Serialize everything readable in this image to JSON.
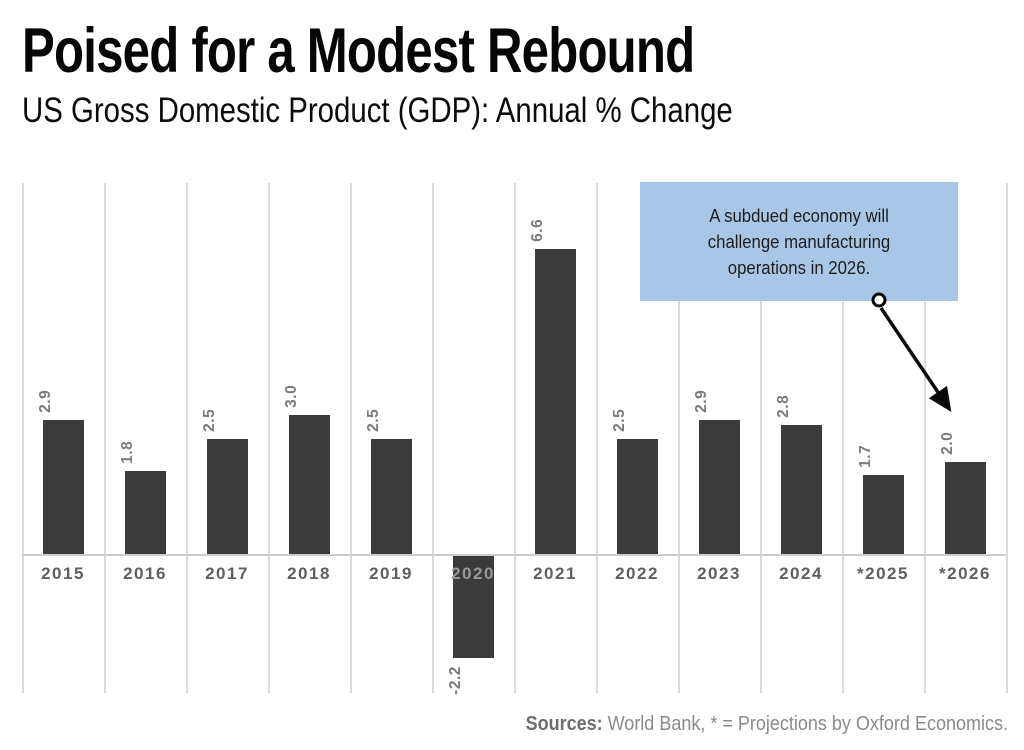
{
  "header": {
    "title": "Poised for a Modest Rebound",
    "subtitle": "US Gross Domestic Product (GDP): Annual % Change"
  },
  "chart_data": {
    "type": "bar",
    "title": "Poised for a Modest Rebound",
    "subtitle": "US Gross Domestic Product (GDP): Annual % Change",
    "categories": [
      "2015",
      "2016",
      "2017",
      "2018",
      "2019",
      "2020",
      "2021",
      "2022",
      "2023",
      "2024",
      "*2025",
      "*2026"
    ],
    "values": [
      2.9,
      1.8,
      2.5,
      3.0,
      2.5,
      -2.2,
      6.6,
      2.5,
      2.9,
      2.8,
      1.7,
      2.0
    ],
    "value_labels": [
      "2.9",
      "1.8",
      "2.5",
      "3.0",
      "2.5",
      "-2.2",
      "6.6",
      "2.5",
      "2.9",
      "2.8",
      "1.7",
      "2.0"
    ],
    "xlabel": "",
    "ylabel": "",
    "ylim": [
      -3.0,
      8.0
    ],
    "grid": "vertical-only",
    "legend": "none",
    "bar_color": "#3b3b3b",
    "gridline_color": "#dadada",
    "zero_line_color": "#cccccc",
    "annotation": "A subdued economy will challenge manufacturing operations in 2026."
  },
  "annotation": {
    "lines": [
      "A subdued economy will",
      "challenge manufacturing",
      "operations in 2026."
    ],
    "bg_color": "#a8c7e7",
    "arrow_target": "*2026"
  },
  "footer": {
    "sources_label": "Sources:",
    "sources_text": "World Bank, * = Projections by Oxford Economics."
  }
}
